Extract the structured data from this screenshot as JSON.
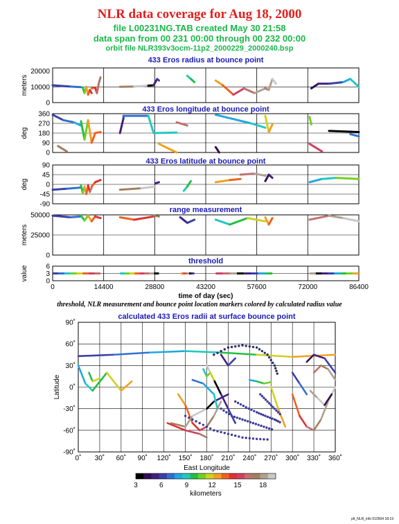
{
  "header": {
    "title": "NLR data coverage for Aug 18, 2000",
    "file_line": "file L00231NG.TAB created May 30 21:58",
    "span_line": "data span from 00 231 00:00 through 00 232 00:00",
    "orbit_line": "orbit file NLR393v3ocm-11p2_2000229_2000240.bsp"
  },
  "caption": "threshold, NLR measurement and bounce point location markers colored by calculated radius value",
  "footer": "plt_NLR_info 010504 18:19",
  "colors": {
    "title": "#e0201c",
    "subtitle": "#19b84a",
    "panel_title": "#1a1ab8"
  },
  "chart_data": [
    {
      "type": "line",
      "title": "433 Eros radius at bounce point",
      "ylabel": "meters",
      "xlim": [
        0,
        86400
      ],
      "ylim": [
        0,
        22000
      ],
      "yticks": [
        0,
        10000,
        20000
      ],
      "ytick_labels": [
        "0",
        "10000",
        "20000"
      ],
      "grid": true,
      "series": [
        {
          "x": [
            0,
            5000,
            8000
          ],
          "y": [
            11000,
            10200,
            9800
          ]
        },
        {
          "x": [
            8500,
            9000,
            9500,
            10000,
            10500,
            11000
          ],
          "y": [
            9500,
            6000,
            10000,
            5000,
            8000,
            6000
          ]
        },
        {
          "x": [
            11000,
            12000,
            12500,
            13000,
            13500
          ],
          "y": [
            9000,
            9500,
            6000,
            12000,
            16000
          ]
        },
        {
          "x": [
            19000,
            23000,
            27000,
            28500
          ],
          "y": [
            10000,
            10200,
            10800,
            11000
          ]
        },
        {
          "x": [
            28500,
            29500,
            30000
          ],
          "y": [
            11000,
            15000,
            14000
          ]
        },
        {
          "x": [
            38000,
            39000,
            40000
          ],
          "y": [
            17000,
            15000,
            13000
          ]
        },
        {
          "x": [
            46000,
            48000,
            51000,
            54000,
            57000,
            60000
          ],
          "y": [
            14000,
            11000,
            5000,
            9000,
            6000,
            9000
          ]
        },
        {
          "x": [
            60000,
            61000,
            62000,
            63000
          ],
          "y": [
            9000,
            8000,
            15000,
            12000
          ]
        },
        {
          "x": [
            73000,
            75000,
            78000,
            82000,
            84000,
            86400
          ],
          "y": [
            9000,
            12000,
            12000,
            13000,
            15000,
            10000
          ]
        }
      ]
    },
    {
      "type": "line",
      "title": "433 Eros longitude at bounce point",
      "ylabel": "deg",
      "xlim": [
        0,
        86400
      ],
      "ylim": [
        0,
        360
      ],
      "yticks": [
        0,
        90,
        180,
        270,
        360
      ],
      "ytick_labels": [
        "0",
        "90",
        "180",
        "270",
        "360"
      ],
      "grid": true,
      "series": [
        {
          "x": [
            0,
            3000,
            6000,
            8000
          ],
          "y": [
            350,
            300,
            280,
            250
          ]
        },
        {
          "x": [
            8000,
            9000,
            10000,
            11000,
            12000
          ],
          "y": [
            290,
            120,
            300,
            90,
            180
          ]
        },
        {
          "x": [
            12000,
            13500
          ],
          "y": [
            180,
            190
          ]
        },
        {
          "x": [
            1500,
            4000
          ],
          "y": [
            60,
            10
          ]
        },
        {
          "x": [
            19000,
            20000,
            20000,
            27000,
            28500
          ],
          "y": [
            180,
            320,
            340,
            340,
            180
          ]
        },
        {
          "x": [
            28500,
            35000
          ],
          "y": [
            180,
            185
          ]
        },
        {
          "x": [
            30000,
            35000
          ],
          "y": [
            80,
            0
          ]
        },
        {
          "x": [
            35000,
            38000
          ],
          "y": [
            280,
            250
          ]
        },
        {
          "x": [
            46000,
            47000
          ],
          "y": [
            50,
            0
          ]
        },
        {
          "x": [
            46000,
            56000,
            60000
          ],
          "y": [
            350,
            270,
            230
          ]
        },
        {
          "x": [
            60000,
            61000,
            62000
          ],
          "y": [
            340,
            190,
            260
          ]
        },
        {
          "x": [
            72500,
            76000
          ],
          "y": [
            80,
            10
          ]
        },
        {
          "x": [
            78000,
            86400
          ],
          "y": [
            200,
            190
          ]
        },
        {
          "x": [
            84000,
            86400
          ],
          "y": [
            170,
            150
          ]
        },
        {
          "x": [
            72500,
            73000
          ],
          "y": [
            330,
            260
          ]
        }
      ]
    },
    {
      "type": "line",
      "title": "433 Eros latitude at bounce point",
      "ylabel": "deg",
      "xlim": [
        0,
        86400
      ],
      "ylim": [
        -90,
        90
      ],
      "yticks": [
        -90,
        -45,
        0,
        45,
        90
      ],
      "ytick_labels": [
        "-90",
        "-45",
        "0",
        "45",
        "90"
      ],
      "grid": true,
      "series": [
        {
          "x": [
            0,
            4000,
            8000
          ],
          "y": [
            -25,
            -20,
            -15
          ]
        },
        {
          "x": [
            8000,
            8500,
            9000,
            9500,
            10000,
            10500,
            11000
          ],
          "y": [
            -5,
            -40,
            -10,
            -45,
            -5,
            -35,
            -15
          ]
        },
        {
          "x": [
            11000,
            12000,
            13500
          ],
          "y": [
            -10,
            10,
            20
          ]
        },
        {
          "x": [
            19000,
            25000,
            29000
          ],
          "y": [
            -25,
            -18,
            -10
          ]
        },
        {
          "x": [
            29000,
            30000
          ],
          "y": [
            5,
            10
          ]
        },
        {
          "x": [
            37000,
            38000,
            39000
          ],
          "y": [
            -30,
            -10,
            15
          ]
        },
        {
          "x": [
            46000,
            50000,
            53000
          ],
          "y": [
            10,
            20,
            25
          ]
        },
        {
          "x": [
            53000,
            57000,
            60000
          ],
          "y": [
            45,
            50,
            40
          ]
        },
        {
          "x": [
            60000,
            61000,
            62000
          ],
          "y": [
            15,
            45,
            30
          ]
        },
        {
          "x": [
            72500,
            76000,
            80000,
            86400
          ],
          "y": [
            10,
            25,
            30,
            25
          ]
        }
      ]
    },
    {
      "type": "line",
      "title": "range measurement",
      "ylabel": "meters",
      "xlim": [
        0,
        86400
      ],
      "ylim": [
        0,
        50000
      ],
      "yticks": [
        0,
        25000,
        50000
      ],
      "ytick_labels": [
        "0",
        "25000",
        "50000"
      ],
      "grid": true,
      "series": [
        {
          "x": [
            0,
            5000,
            8000
          ],
          "y": [
            49000,
            47000,
            48000
          ]
        },
        {
          "x": [
            8000,
            9000,
            10000,
            11000,
            12000,
            13500
          ],
          "y": [
            49000,
            43000,
            49000,
            42000,
            48000,
            46000
          ]
        },
        {
          "x": [
            19000,
            23000,
            28500
          ],
          "y": [
            47000,
            44000,
            48000
          ]
        },
        {
          "x": [
            28500,
            30000
          ],
          "y": [
            49000,
            48000
          ]
        },
        {
          "x": [
            36000,
            38000,
            40000
          ],
          "y": [
            47000,
            40000,
            44000
          ]
        },
        {
          "x": [
            46000,
            50000,
            55000,
            60000
          ],
          "y": [
            44000,
            38000,
            46000,
            42000
          ]
        },
        {
          "x": [
            60000,
            61000,
            62000
          ],
          "y": [
            47000,
            38000,
            46000
          ]
        },
        {
          "x": [
            72500,
            78000,
            82000,
            86400
          ],
          "y": [
            44000,
            49000,
            46000,
            42000
          ]
        }
      ]
    },
    {
      "type": "scatter",
      "title": "threshold",
      "ylabel": "value",
      "xlabel": "time of day (sec)",
      "xlim": [
        0,
        86400
      ],
      "ylim": [
        0,
        6
      ],
      "yticks": [
        0,
        3,
        6
      ],
      "ytick_labels": [
        "0",
        "3",
        "6"
      ],
      "xticks": [
        0,
        14400,
        28800,
        43200,
        57600,
        72000,
        86400
      ],
      "xtick_labels": [
        "0",
        "14400",
        "28800",
        "43200",
        "57600",
        "72000",
        "86400"
      ],
      "grid": true,
      "segments": [
        [
          0,
          13500
        ],
        [
          19000,
          30000
        ],
        [
          36000,
          40000
        ],
        [
          46000,
          62000
        ],
        [
          72500,
          86400
        ]
      ],
      "value": 3
    },
    {
      "type": "scatter",
      "title": "calculated 433 Eros radii at surface bounce point",
      "xlabel": "East Longitude",
      "ylabel": "Latitude",
      "xlim": [
        0,
        360
      ],
      "ylim": [
        -90,
        90
      ],
      "xticks": [
        0,
        30,
        60,
        90,
        120,
        150,
        180,
        210,
        240,
        270,
        300,
        330,
        360
      ],
      "xtick_labels": [
        "0˚",
        "30˚",
        "60˚",
        "90˚",
        "120˚",
        "150˚",
        "180˚",
        "210˚",
        "240˚",
        "270˚",
        "300˚",
        "330˚",
        "360˚"
      ],
      "yticks": [
        -90,
        -60,
        -30,
        0,
        30,
        60,
        90
      ],
      "ytick_labels": [
        "-90˚",
        "-60˚",
        "-30˚",
        "0˚",
        "30˚",
        "60˚",
        "90˚"
      ],
      "grid": true,
      "tracks": [
        {
          "lon": [
            0,
            50,
            100,
            150,
            200,
            250,
            300,
            360
          ],
          "lat": [
            43,
            45,
            48,
            50,
            48,
            45,
            42,
            45
          ]
        },
        {
          "lon": [
            0,
            10,
            20,
            40,
            60,
            75
          ],
          "lat": [
            30,
            5,
            -5,
            20,
            -5,
            8
          ]
        },
        {
          "lon": [
            15,
            20,
            30
          ],
          "lat": [
            20,
            8,
            12
          ]
        },
        {
          "lon": [
            140,
            150,
            160,
            170,
            180,
            190,
            200
          ],
          "lat": [
            -10,
            -25,
            -50,
            -60,
            -55,
            -40,
            -20
          ]
        },
        {
          "lon": [
            125,
            150,
            170,
            180
          ],
          "lat": [
            -50,
            -60,
            -65,
            -70
          ]
        },
        {
          "lon": [
            130,
            150,
            160,
            180,
            190,
            210
          ],
          "lat": [
            -50,
            -55,
            -40,
            -30,
            -20,
            -10
          ]
        },
        {
          "lon": [
            180,
            190,
            200,
            210,
            220
          ],
          "lat": [
            30,
            10,
            -10,
            -30,
            -50
          ]
        },
        {
          "lon": [
            200,
            210,
            220
          ],
          "lat": [
            45,
            30,
            40
          ]
        },
        {
          "lon": [
            160,
            175,
            190,
            195
          ],
          "lat": [
            10,
            5,
            -10,
            -30
          ]
        },
        {
          "lon": [
            175,
            180,
            185,
            190
          ],
          "lat": [
            25,
            15,
            20,
            10
          ]
        },
        {
          "lon": [
            270,
            280,
            290
          ],
          "lat": [
            0,
            -30,
            -55
          ]
        },
        {
          "lon": [
            300,
            310,
            320,
            330,
            340,
            350,
            360
          ],
          "lat": [
            -10,
            -40,
            -55,
            -60,
            -45,
            -20,
            0
          ]
        },
        {
          "lon": [
            330,
            340,
            350,
            360
          ],
          "lat": [
            20,
            30,
            25,
            10
          ]
        },
        {
          "lon": [
            325,
            335,
            345,
            355
          ],
          "lat": [
            -5,
            -15,
            -25,
            -10
          ]
        },
        {
          "lon": [
            320,
            330,
            345,
            360
          ],
          "lat": [
            35,
            45,
            40,
            20
          ]
        },
        {
          "lon": [
            300,
            310,
            320
          ],
          "lat": [
            20,
            5,
            -10
          ]
        },
        {
          "lon": [
            240,
            250,
            260,
            270
          ],
          "lat": [
            10,
            8,
            5,
            7
          ]
        }
      ],
      "dots": [
        {
          "lon": [
            190,
            210,
            230,
            250,
            265,
            275,
            280
          ],
          "lat": [
            45,
            55,
            58,
            55,
            45,
            30,
            15
          ]
        },
        {
          "lon": [
            150,
            170,
            190,
            210,
            230,
            250,
            270
          ],
          "lat": [
            -40,
            -50,
            -60,
            -65,
            -70,
            -72,
            -73
          ]
        },
        {
          "lon": [
            200,
            215,
            230,
            245,
            260,
            275
          ],
          "lat": [
            -30,
            -40,
            -45,
            -50,
            -55,
            -60
          ]
        },
        {
          "lon": [
            220,
            235,
            250,
            262,
            275,
            285
          ],
          "lat": [
            -20,
            -28,
            -35,
            -40,
            -45,
            -50
          ]
        },
        {
          "lon": [
            255,
            265,
            275,
            285
          ],
          "lat": [
            -10,
            -20,
            -30,
            -40
          ]
        }
      ],
      "colorbar": {
        "label": "kilometers",
        "min": 3,
        "max": 19.5,
        "ticks": [
          3,
          6,
          9,
          12,
          15,
          18
        ],
        "tick_labels": [
          "3",
          "6",
          "9",
          "12",
          "15",
          "18"
        ],
        "colors": [
          "#000000",
          "#301050",
          "#402080",
          "#3a40a8",
          "#3070d0",
          "#20a8e0",
          "#20c8c0",
          "#20c040",
          "#70d020",
          "#d0d020",
          "#f0a020",
          "#f06020",
          "#e03030",
          "#d04060",
          "#c07070",
          "#a08060",
          "#b0a090",
          "#c8c8c8"
        ]
      }
    }
  ]
}
